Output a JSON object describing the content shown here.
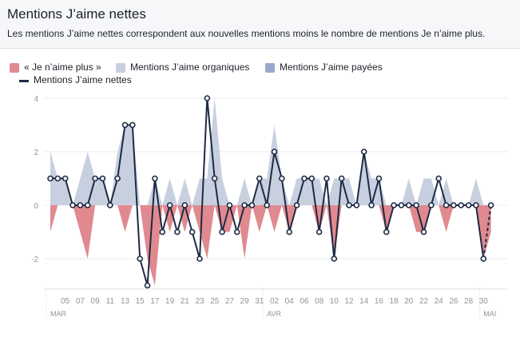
{
  "title": "Mentions J’aime nettes",
  "subtitle": "Les mentions J’aime nettes correspondent aux nouvelles mentions moins le nombre de mentions Je n’aime plus.",
  "legend": {
    "unlikes": "« Je n’aime plus »",
    "organic": "Mentions J’aime organiques",
    "paid": "Mentions J’aime payées",
    "net": "Mentions J’aime nettes"
  },
  "colors": {
    "unlikes": "#e08a8f",
    "organic": "#c8d0e0",
    "paid": "#9aa8cf",
    "net": "#1d2a44",
    "header_bg": "#f6f7f9"
  },
  "chart_data": {
    "type": "area",
    "legend_position": "top-left",
    "grid": true,
    "ylim": [
      -3,
      4
    ],
    "y_ticks": [
      "4",
      "2",
      "0",
      "-2"
    ],
    "y_tick_values": [
      4,
      2,
      0,
      -2
    ],
    "x_tick_labels": [
      "05",
      "07",
      "09",
      "11",
      "13",
      "15",
      "17",
      "19",
      "21",
      "23",
      "25",
      "27",
      "29",
      "31",
      "02",
      "04",
      "06",
      "08",
      "10",
      "12",
      "14",
      "16",
      "18",
      "20",
      "22",
      "24",
      "26",
      "28",
      "30"
    ],
    "month_labels": [
      "MAR",
      "AVR",
      "MAI"
    ],
    "x": [
      "03-03",
      "03-04",
      "03-05",
      "03-06",
      "03-07",
      "03-08",
      "03-09",
      "03-10",
      "03-11",
      "03-12",
      "03-13",
      "03-14",
      "03-15",
      "03-16",
      "03-17",
      "03-18",
      "03-19",
      "03-20",
      "03-21",
      "03-22",
      "03-23",
      "03-24",
      "03-25",
      "03-26",
      "03-27",
      "03-28",
      "03-29",
      "03-30",
      "03-31",
      "04-01",
      "04-02",
      "04-03",
      "04-04",
      "04-05",
      "04-06",
      "04-07",
      "04-08",
      "04-09",
      "04-10",
      "04-11",
      "04-12",
      "04-13",
      "04-14",
      "04-15",
      "04-16",
      "04-17",
      "04-18",
      "04-19",
      "04-20",
      "04-21",
      "04-22",
      "04-23",
      "04-24",
      "04-25",
      "04-26",
      "04-27",
      "04-28",
      "04-29",
      "04-30",
      "05-01"
    ],
    "series": [
      {
        "name": "« Je n’aime plus »",
        "values": [
          -1,
          0,
          0,
          0,
          -1,
          -2,
          0,
          0,
          0,
          0,
          -1,
          0,
          0,
          -2,
          -3,
          0,
          -1,
          0,
          -1,
          0,
          -1,
          -2,
          0,
          -1,
          -1,
          0,
          -2,
          0,
          -1,
          0,
          -1,
          0,
          -1,
          0,
          0,
          0,
          -1,
          0,
          -2,
          0,
          0,
          0,
          0,
          0,
          0,
          -1,
          0,
          0,
          0,
          -1,
          -1,
          0,
          0,
          -1,
          0,
          0,
          0,
          0,
          -2,
          -1
        ]
      },
      {
        "name": "Mentions J’aime organiques",
        "values": [
          2,
          1,
          1,
          0,
          1,
          2,
          1,
          1,
          0,
          2,
          3,
          3,
          0,
          0,
          1,
          0,
          1,
          0,
          1,
          0,
          1,
          1,
          4,
          1,
          0,
          0,
          1,
          0,
          1,
          1,
          3,
          1,
          0,
          1,
          1,
          1,
          1,
          0,
          1,
          1,
          1,
          0,
          2,
          1,
          1,
          0,
          0,
          0,
          1,
          0,
          1,
          1,
          0,
          1,
          0,
          0,
          0,
          1,
          0,
          0
        ]
      },
      {
        "name": "Mentions J’aime payées",
        "values": [
          0,
          0,
          0,
          0,
          0,
          0,
          0,
          0,
          0,
          0,
          0,
          0,
          0,
          0,
          0,
          0,
          0,
          0,
          0,
          0,
          0,
          0,
          0,
          0,
          0,
          0,
          0,
          0,
          0,
          0,
          0,
          0,
          0,
          0,
          0,
          0,
          0,
          0,
          0,
          0,
          0,
          0,
          0,
          0,
          0,
          0,
          0,
          0,
          0,
          0,
          0,
          0,
          0,
          0,
          0,
          0,
          0,
          0,
          0,
          0
        ]
      },
      {
        "name": "Mentions J’aime nettes",
        "values": [
          1,
          1,
          1,
          0,
          0,
          0,
          1,
          1,
          0,
          1,
          3,
          3,
          -2,
          -3,
          1,
          -1,
          0,
          -1,
          0,
          -1,
          -2,
          4,
          1,
          -1,
          0,
          -1,
          0,
          0,
          1,
          0,
          2,
          1,
          -1,
          0,
          1,
          1,
          -1,
          1,
          -2,
          1,
          0,
          0,
          2,
          0,
          1,
          -1,
          0,
          0,
          0,
          0,
          -1,
          0,
          1,
          0,
          0,
          0,
          0,
          0,
          -2,
          0
        ]
      }
    ]
  }
}
